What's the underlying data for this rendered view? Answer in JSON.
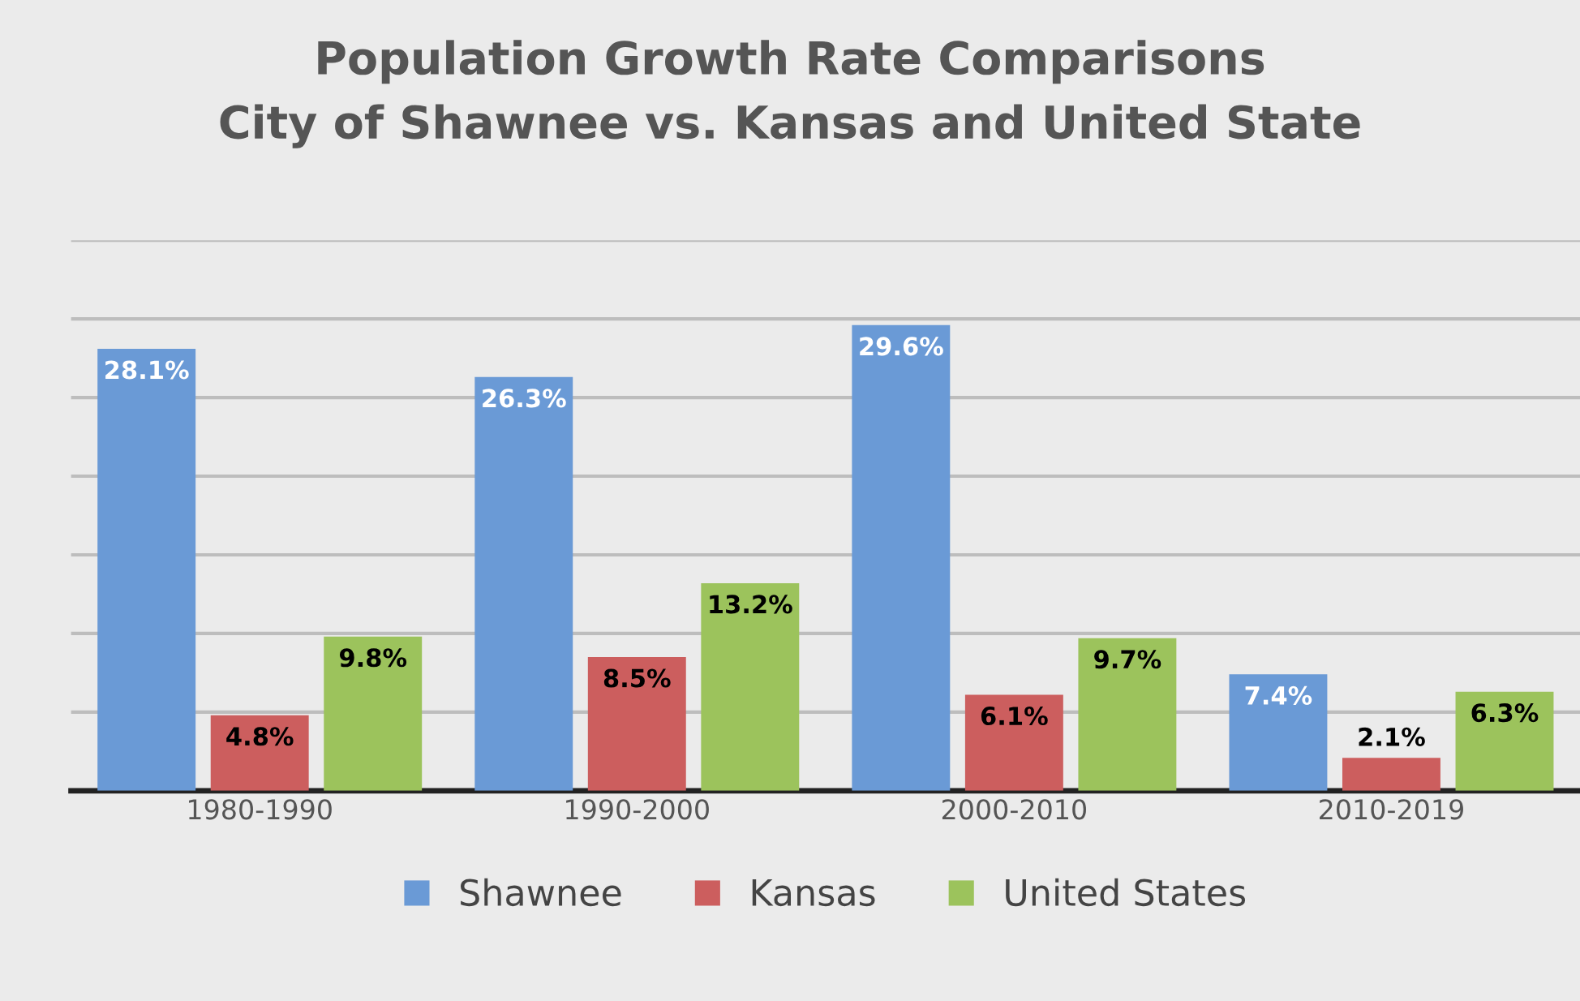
{
  "chart_data": {
    "type": "bar",
    "title": "Population Growth Rate Comparisons\nCity of Shawnee vs. Kansas and United State",
    "categories": [
      "1980-1990",
      "1990-2000",
      "2000-2010",
      "2010-2019"
    ],
    "series": [
      {
        "name": "Shawnee",
        "color": "#6a9ad6",
        "values": [
          28.1,
          26.3,
          29.6,
          7.4
        ],
        "value_labels": [
          "28.1%",
          "26.3%",
          "29.6%",
          "7.4%"
        ]
      },
      {
        "name": "Kansas",
        "color": "#cc5e5e",
        "values": [
          4.8,
          8.5,
          6.1,
          2.1
        ],
        "value_labels": [
          "4.8%",
          "8.5%",
          "6.1%",
          "2.1%"
        ]
      },
      {
        "name": "United States",
        "color": "#9cc35c",
        "values": [
          9.8,
          13.2,
          9.7,
          6.3
        ],
        "value_labels": [
          "9.8%",
          "13.2%",
          "9.7%",
          "6.3%"
        ]
      }
    ],
    "ylim": [
      0,
      35
    ],
    "yticks": [
      {
        "value": 0,
        "label": null
      },
      {
        "value": 5,
        "label": null
      },
      {
        "value": 10,
        "label": null
      },
      {
        "value": 15,
        "label": null
      },
      {
        "value": 20,
        "label": null
      },
      {
        "value": 25,
        "label": null
      },
      {
        "value": 30,
        "label": null
      },
      {
        "value": 35,
        "label": null
      }
    ],
    "grid": "y",
    "legend": "bottom",
    "tick_labels": "x"
  }
}
